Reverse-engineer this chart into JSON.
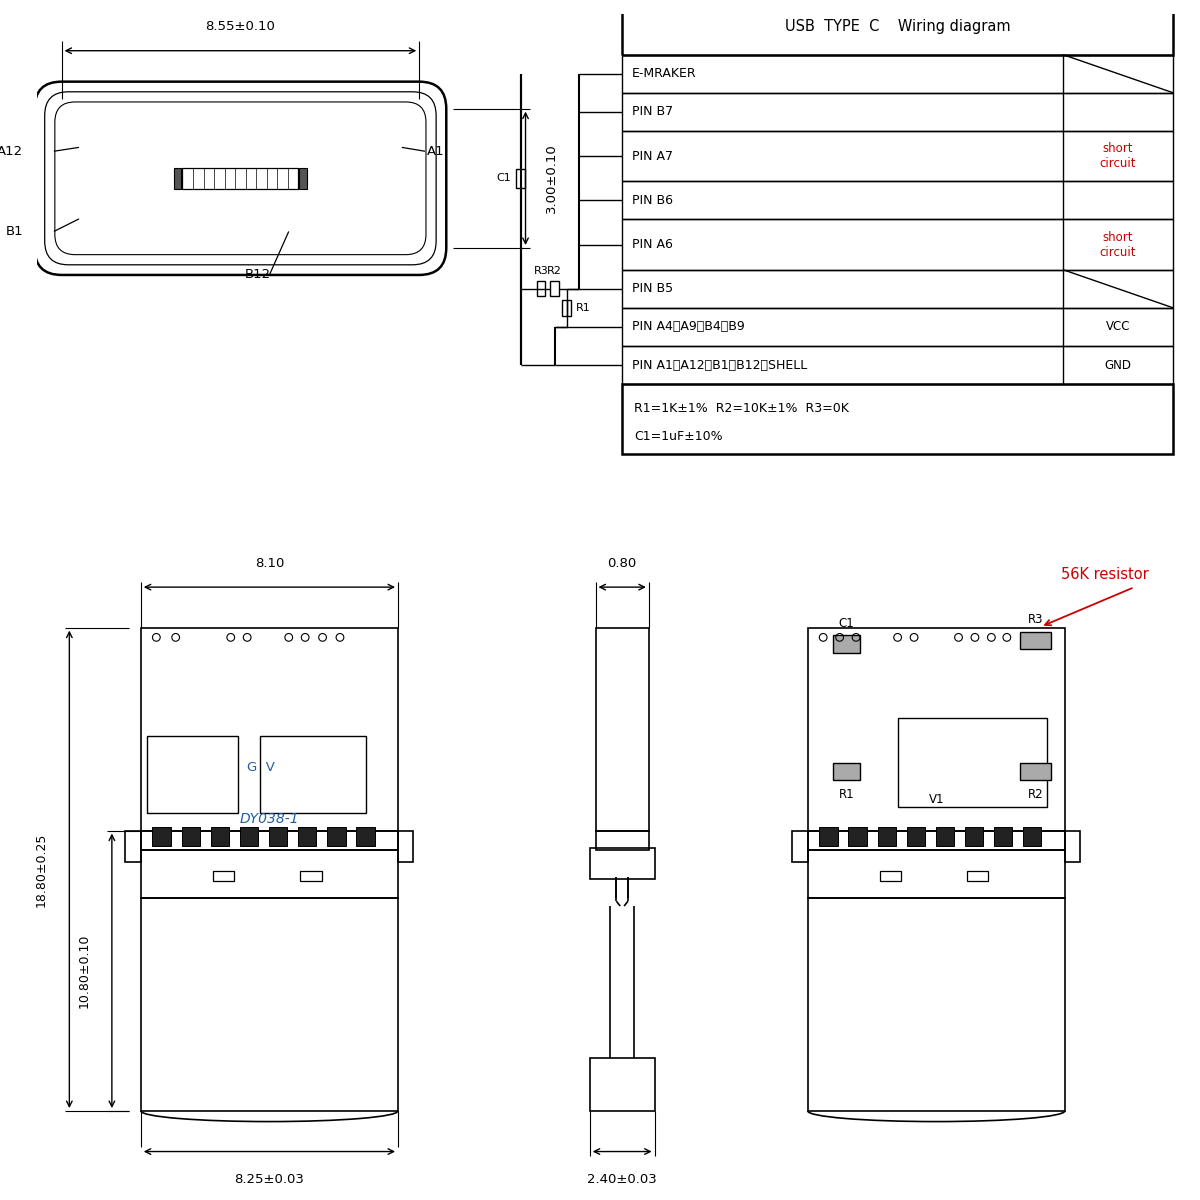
{
  "bg_color": "#ffffff",
  "line_color": "#000000",
  "blue_color": "#2060a0",
  "red_color": "#cc0000",
  "table_title": "USB  TYPE  C    Wiring diagram",
  "table_rows": [
    {
      "pin": "PIN A1、A12、B1、B12、SHELL",
      "conn": "GND",
      "conn_color": "black"
    },
    {
      "pin": "PIN A4、A9、B4、B9",
      "conn": "VCC",
      "conn_color": "black"
    },
    {
      "pin": "PIN B5",
      "conn": "",
      "conn_color": "black",
      "slash": true
    },
    {
      "pin": "PIN A6",
      "conn": "short\ncircuit",
      "conn_color": "red",
      "slash": false
    },
    {
      "pin": "PIN B6",
      "conn": "",
      "conn_color": "black",
      "slash": false
    },
    {
      "pin": "PIN A7",
      "conn": "short\ncircuit",
      "conn_color": "red",
      "slash": false
    },
    {
      "pin": "PIN B7",
      "conn": "",
      "conn_color": "black",
      "slash": false
    },
    {
      "pin": "E-MRAKER",
      "conn": "",
      "conn_color": "black",
      "slash": true
    }
  ],
  "table_note_line1": "R1=1K±1%  R2=10K±1%  R3=0K",
  "table_note_line2": "C1=1uF±10%",
  "dim_855": "8.55±0.10",
  "dim_300": "3.00±0.10",
  "dim_810": "8.10",
  "dim_825": "8.25±0.03",
  "dim_1880": "18.80±0.25",
  "dim_1080": "10.80±0.10",
  "dim_080": "0.80",
  "dim_240": "2.40±0.03",
  "label_a12": "A12",
  "label_a1": "A1",
  "label_b1": "B1",
  "label_b12": "B12",
  "label_dy": "DY038-1",
  "label_gv": "G  V",
  "label_56k": "56K resistor",
  "label_r1": "R1",
  "label_r2": "R2",
  "label_r3": "R3",
  "label_c1": "C1",
  "label_v1": "V1"
}
